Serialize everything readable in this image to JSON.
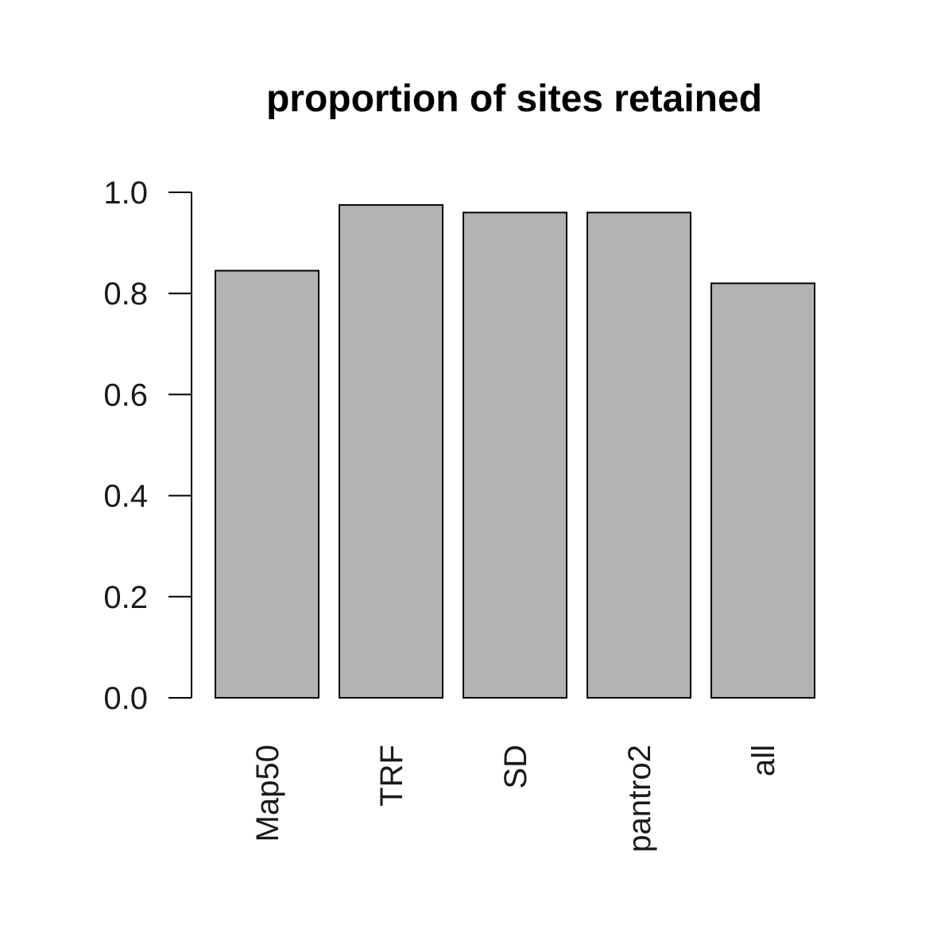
{
  "chart_data": {
    "type": "bar",
    "title": "proportion of sites retained",
    "xlabel": "",
    "ylabel": "",
    "categories": [
      "Map50",
      "TRF",
      "SD",
      "pantro2",
      "all"
    ],
    "values": [
      0.845,
      0.975,
      0.96,
      0.96,
      0.82
    ],
    "ylim": [
      0,
      1.0
    ],
    "yticks": [
      "0.0",
      "0.2",
      "0.4",
      "0.6",
      "0.8",
      "1.0"
    ],
    "grid": false,
    "legend": "none",
    "category_label_orientation": "vertical",
    "colors": {
      "bar_fill": "#b3b3b3",
      "bar_stroke": "#000000",
      "axis": "#000000"
    }
  }
}
